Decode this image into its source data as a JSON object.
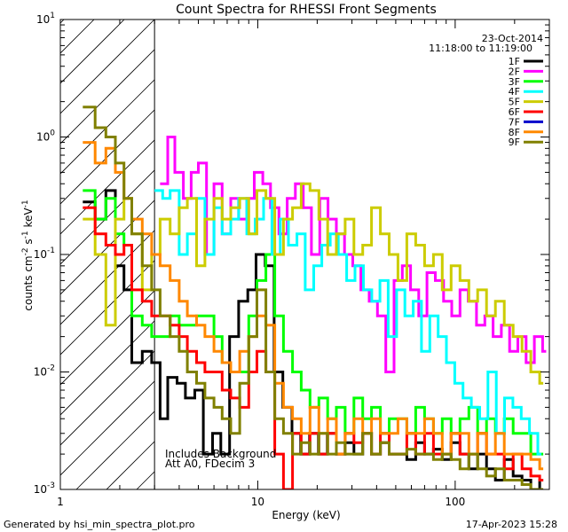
{
  "chart_data": {
    "type": "line",
    "title": "Count Spectra for RHESSI Front Segments",
    "xlabel": "Energy (keV)",
    "ylabel_parts": {
      "base": "counts cm",
      "exp1": "-2",
      "mid": " s",
      "exp2": "-1",
      "end": " keV",
      "exp3": "-1"
    },
    "xscale": "log",
    "yscale": "log",
    "xlim": [
      1,
      300
    ],
    "ylim": [
      0.001,
      10
    ],
    "x_ticks": [
      {
        "v": 1,
        "label": "1"
      },
      {
        "v": 10,
        "label": "10"
      },
      {
        "v": 100,
        "label": "100"
      }
    ],
    "y_ticks": [
      {
        "v": 0.001,
        "base": "10",
        "exp": "-3"
      },
      {
        "v": 0.01,
        "base": "10",
        "exp": "-2"
      },
      {
        "v": 0.1,
        "base": "10",
        "exp": "-1"
      },
      {
        "v": 1,
        "base": "10",
        "exp": "0"
      },
      {
        "v": 10,
        "base": "10",
        "exp": "1"
      }
    ],
    "hatched_region": [
      1,
      3
    ],
    "header_lines": [
      "23-Oct-2014",
      "11:18:00 to 11:19:00"
    ],
    "annotations": [
      "Includes Background",
      "Att A0, FDecim 3"
    ],
    "footer_left": "Generated by hsi_min_spectra_plot.pro",
    "footer_right": "17-Apr-2023 15:28",
    "series": [
      {
        "name": "1F",
        "color": "#000000",
        "x": [
          1.3,
          1.5,
          1.7,
          1.9,
          2.1,
          2.3,
          2.6,
          2.9,
          3.2,
          3.5,
          3.9,
          4.3,
          4.8,
          5.3,
          5.9,
          6.5,
          7.2,
          8.0,
          8.9,
          9.8,
          10.9,
          12.1,
          13.4,
          14.9,
          16.5,
          18.3,
          20.3,
          22.5,
          25,
          27.7,
          30.7,
          34,
          37.7,
          41.8,
          46.3,
          51.3,
          56.9,
          63.1,
          70,
          77.6,
          86,
          95.4,
          105.8,
          117.3,
          130,
          144.2,
          159.9,
          177.3,
          196.6,
          218,
          241.7,
          268
        ],
        "values": [
          0.28,
          0.2,
          0.35,
          0.08,
          0.05,
          0.012,
          0.015,
          0.012,
          0.004,
          0.009,
          0.008,
          0.006,
          0.007,
          0.002,
          0.003,
          0.002,
          0.02,
          0.04,
          0.05,
          0.1,
          0.08,
          0.01,
          0.005,
          0.003,
          0.002,
          0.003,
          0.002,
          0.003,
          0.002,
          0.0025,
          0.002,
          0.003,
          0.002,
          0.0025,
          0.002,
          0.002,
          0.0018,
          0.0025,
          0.002,
          0.0022,
          0.0018,
          0.0025,
          0.002,
          0.0015,
          0.002,
          0.0015,
          0.0012,
          0.0018,
          0.0013,
          0.0012,
          0.001,
          0.0012
        ]
      },
      {
        "name": "2F",
        "color": "#ff00ff",
        "x": [
          3.2,
          3.5,
          3.8,
          4.2,
          4.6,
          5.0,
          5.5,
          6.0,
          6.6,
          7.3,
          8.0,
          8.8,
          9.6,
          10.6,
          11.6,
          12.8,
          14.1,
          15.5,
          17.0,
          18.7,
          20.6,
          22.7,
          25,
          27.5,
          30.3,
          33.3,
          36.7,
          40.4,
          44.5,
          49,
          54,
          59.4,
          65.4,
          72,
          79.3,
          87.3,
          96.1,
          105.8,
          116.5,
          128.3,
          141.3,
          155.6,
          171.3,
          188.6,
          207.7,
          228.7,
          251.8,
          277.3
        ],
        "values": [
          0.4,
          1.0,
          0.5,
          0.3,
          0.5,
          0.6,
          0.1,
          0.4,
          0.15,
          0.3,
          0.2,
          0.3,
          0.5,
          0.4,
          0.25,
          0.15,
          0.3,
          0.4,
          0.25,
          0.1,
          0.3,
          0.2,
          0.15,
          0.1,
          0.08,
          0.05,
          0.04,
          0.03,
          0.01,
          0.06,
          0.08,
          0.05,
          0.03,
          0.07,
          0.06,
          0.04,
          0.03,
          0.05,
          0.04,
          0.025,
          0.03,
          0.02,
          0.025,
          0.015,
          0.02,
          0.012,
          0.02,
          0.015
        ]
      },
      {
        "name": "3F",
        "color": "#00ff00",
        "x": [
          1.3,
          1.5,
          1.7,
          1.9,
          2.1,
          2.3,
          2.6,
          2.9,
          3.2,
          3.6,
          4.0,
          4.4,
          4.9,
          5.4,
          6.0,
          6.6,
          7.3,
          8.1,
          9.0,
          9.9,
          11,
          12.2,
          13.5,
          15,
          16.6,
          18.4,
          20.4,
          22.6,
          25,
          27.7,
          30.7,
          34,
          37.7,
          41.8,
          46.3,
          51.3,
          56.9,
          63.1,
          70,
          77.6,
          86,
          95.4,
          105.8,
          117.3,
          130,
          144.2,
          159.9,
          177.3,
          196.6,
          218,
          241.7,
          268
        ],
        "values": [
          0.35,
          0.2,
          0.3,
          0.15,
          0.12,
          0.03,
          0.025,
          0.02,
          0.02,
          0.03,
          0.025,
          0.025,
          0.03,
          0.03,
          0.02,
          0.012,
          0.01,
          0.01,
          0.03,
          0.06,
          0.1,
          0.03,
          0.015,
          0.01,
          0.007,
          0.005,
          0.006,
          0.004,
          0.005,
          0.003,
          0.006,
          0.004,
          0.005,
          0.003,
          0.004,
          0.004,
          0.003,
          0.005,
          0.004,
          0.003,
          0.004,
          0.003,
          0.004,
          0.005,
          0.003,
          0.004,
          0.003,
          0.004,
          0.003,
          0.003,
          0.002,
          0.002
        ]
      },
      {
        "name": "4F",
        "color": "#00ffff",
        "x": [
          3.0,
          3.3,
          3.6,
          4.0,
          4.4,
          4.9,
          5.4,
          6.0,
          6.6,
          7.3,
          8.0,
          8.8,
          9.7,
          10.7,
          11.8,
          13.0,
          14.3,
          15.8,
          17.4,
          19.2,
          21.1,
          23.3,
          25.6,
          28.2,
          31.1,
          34.3,
          37.8,
          41.6,
          45.8,
          50.5,
          55.6,
          61.3,
          67.5,
          74.4,
          82,
          90.3,
          99.5,
          109.6,
          120.8,
          133.1,
          146.6,
          161.5,
          177.9,
          196,
          216,
          238,
          262.2
        ],
        "values": [
          0.35,
          0.3,
          0.35,
          0.1,
          0.15,
          0.3,
          0.1,
          0.25,
          0.15,
          0.2,
          0.3,
          0.15,
          0.2,
          0.3,
          0.1,
          0.2,
          0.12,
          0.15,
          0.05,
          0.08,
          0.12,
          0.15,
          0.1,
          0.06,
          0.08,
          0.05,
          0.04,
          0.06,
          0.02,
          0.05,
          0.03,
          0.04,
          0.015,
          0.03,
          0.02,
          0.012,
          0.008,
          0.006,
          0.005,
          0.004,
          0.01,
          0.003,
          0.006,
          0.005,
          0.004,
          0.003,
          0.002
        ]
      },
      {
        "name": "5F",
        "color": "#cccc00",
        "x": [
          1.3,
          1.5,
          1.7,
          1.9,
          2.1,
          2.3,
          2.6,
          2.9,
          3.2,
          3.6,
          4.0,
          4.4,
          4.9,
          5.4,
          6.0,
          6.6,
          7.3,
          8.1,
          9.0,
          9.9,
          11,
          12.2,
          13.5,
          15,
          16.6,
          18.4,
          20.4,
          22.6,
          25,
          27.7,
          30.7,
          34,
          37.7,
          41.8,
          46.3,
          51.3,
          56.9,
          63.1,
          70,
          77.6,
          86,
          95.4,
          105.8,
          117.3,
          130,
          144.2,
          159.9,
          177.3,
          196.6,
          218,
          241.7,
          268
        ],
        "values": [
          0.2,
          0.1,
          0.025,
          0.2,
          0.3,
          0.15,
          0.05,
          0.1,
          0.2,
          0.15,
          0.25,
          0.3,
          0.08,
          0.2,
          0.3,
          0.2,
          0.25,
          0.3,
          0.15,
          0.35,
          0.3,
          0.1,
          0.2,
          0.25,
          0.4,
          0.35,
          0.2,
          0.1,
          0.15,
          0.2,
          0.1,
          0.12,
          0.25,
          0.15,
          0.1,
          0.06,
          0.15,
          0.12,
          0.08,
          0.1,
          0.05,
          0.08,
          0.06,
          0.04,
          0.05,
          0.03,
          0.04,
          0.025,
          0.02,
          0.015,
          0.01,
          0.008
        ]
      },
      {
        "name": "6F",
        "color": "#ff0000",
        "x": [
          1.3,
          1.5,
          1.7,
          1.9,
          2.1,
          2.3,
          2.6,
          2.9,
          3.2,
          3.6,
          4.0,
          4.4,
          4.9,
          5.4,
          6.0,
          6.6,
          7.3,
          8.1,
          9.0,
          9.9,
          11,
          12.2,
          13.5,
          15,
          16.6,
          18.4,
          20.4,
          22.6,
          25,
          27.7,
          30.7,
          34,
          37.7,
          41.8,
          46.3,
          51.3,
          56.9,
          63.1,
          70,
          77.6,
          86,
          95.4,
          105.8,
          117.3,
          130,
          144.2,
          159.9,
          177.3,
          196.6,
          218,
          241.7,
          268
        ],
        "values": [
          0.25,
          0.15,
          0.12,
          0.1,
          0.12,
          0.05,
          0.04,
          0.03,
          0.03,
          0.025,
          0.02,
          0.015,
          0.012,
          0.01,
          0.01,
          0.007,
          0.006,
          0.005,
          0.01,
          0.015,
          0.01,
          0.002,
          0.001,
          0.003,
          0.002,
          0.003,
          0.002,
          0.003,
          0.002,
          0.003,
          0.0025,
          0.003,
          0.002,
          0.003,
          0.002,
          0.002,
          0.003,
          0.002,
          0.003,
          0.002,
          0.002,
          0.003,
          0.002,
          0.002,
          0.003,
          0.002,
          0.002,
          0.0015,
          0.002,
          0.0015,
          0.0013,
          0.0012
        ]
      },
      {
        "name": "7F",
        "color": "#0000cc",
        "x": [],
        "values": []
      },
      {
        "name": "8F",
        "color": "#ff8800",
        "x": [
          1.3,
          1.5,
          1.7,
          1.9,
          2.1,
          2.3,
          2.6,
          2.9,
          3.2,
          3.6,
          4.0,
          4.4,
          4.9,
          5.4,
          6.0,
          6.6,
          7.3,
          8.1,
          9.0,
          9.9,
          11,
          12.2,
          13.5,
          15,
          16.6,
          18.4,
          20.4,
          22.6,
          25,
          27.7,
          30.7,
          34,
          37.7,
          41.8,
          46.3,
          51.3,
          56.9,
          63.1,
          70,
          77.6,
          86,
          95.4,
          105.8,
          117.3,
          130,
          144.2,
          159.9,
          177.3,
          196.6,
          218,
          241.7,
          268
        ],
        "values": [
          0.9,
          0.6,
          0.8,
          0.5,
          0.3,
          0.2,
          0.15,
          0.1,
          0.08,
          0.06,
          0.04,
          0.03,
          0.025,
          0.02,
          0.015,
          0.012,
          0.01,
          0.015,
          0.02,
          0.03,
          0.025,
          0.008,
          0.005,
          0.004,
          0.003,
          0.005,
          0.003,
          0.004,
          0.002,
          0.003,
          0.004,
          0.003,
          0.004,
          0.003,
          0.003,
          0.004,
          0.003,
          0.003,
          0.004,
          0.003,
          0.002,
          0.003,
          0.003,
          0.002,
          0.003,
          0.002,
          0.003,
          0.002,
          0.002,
          0.002,
          0.0018,
          0.0015
        ]
      },
      {
        "name": "9F",
        "color": "#808000",
        "x": [
          1.3,
          1.5,
          1.7,
          1.9,
          2.1,
          2.3,
          2.6,
          2.9,
          3.2,
          3.6,
          4.0,
          4.4,
          4.9,
          5.4,
          6.0,
          6.6,
          7.3,
          8.1,
          9.0,
          9.9,
          11,
          12.2,
          13.5,
          15,
          16.6,
          18.4,
          20.4,
          22.6,
          25,
          27.7,
          30.7,
          34,
          37.7,
          41.8,
          46.3,
          51.3,
          56.9,
          63.1,
          70,
          77.6,
          86,
          95.4,
          105.8,
          117.3,
          130,
          144.2,
          159.9,
          177.3,
          196.6,
          218,
          241.7,
          268
        ],
        "values": [
          1.8,
          1.2,
          1.0,
          0.6,
          0.3,
          0.15,
          0.08,
          0.05,
          0.03,
          0.02,
          0.015,
          0.01,
          0.008,
          0.006,
          0.005,
          0.004,
          0.003,
          0.008,
          0.02,
          0.05,
          0.01,
          0.004,
          0.003,
          0.002,
          0.0025,
          0.002,
          0.003,
          0.002,
          0.0025,
          0.002,
          0.002,
          0.003,
          0.002,
          0.0025,
          0.002,
          0.002,
          0.0022,
          0.002,
          0.002,
          0.0018,
          0.002,
          0.0018,
          0.0015,
          0.002,
          0.0015,
          0.0013,
          0.0015,
          0.0012,
          0.0012,
          0.0011,
          0.001,
          0.001
        ]
      }
    ]
  }
}
